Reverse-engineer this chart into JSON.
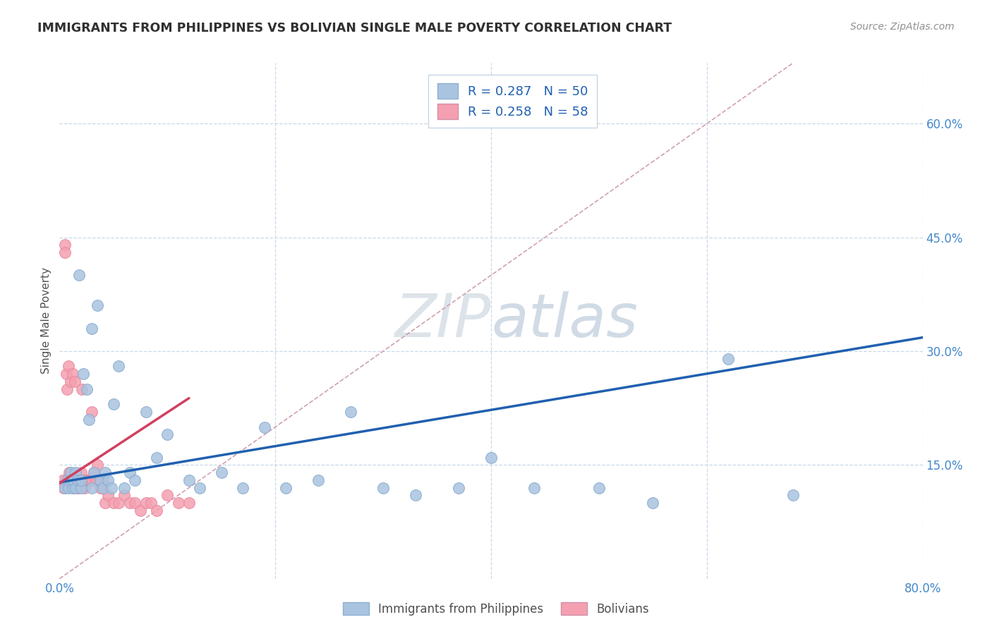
{
  "title": "IMMIGRANTS FROM PHILIPPINES VS BOLIVIAN SINGLE MALE POVERTY CORRELATION CHART",
  "source": "Source: ZipAtlas.com",
  "ylabel": "Single Male Poverty",
  "background_color": "#ffffff",
  "watermark_zip": "ZIP",
  "watermark_atlas": "atlas",
  "blue_R": 0.287,
  "blue_N": 50,
  "pink_R": 0.258,
  "pink_N": 58,
  "blue_scatter_color": "#a8c4e0",
  "pink_scatter_color": "#f4a0b0",
  "blue_line_color": "#2060b0",
  "pink_line_color": "#d04060",
  "diag_line_color": "#d0a0b0",
  "grid_color": "#c8d8e8",
  "title_color": "#303030",
  "axis_label_color": "#4488cc",
  "legend_text_color": "#2060b0",
  "xlim": [
    0.0,
    0.8
  ],
  "ylim": [
    0.0,
    0.68
  ],
  "x_ticks": [
    0.0,
    0.2,
    0.4,
    0.6,
    0.8
  ],
  "x_tick_labels": [
    "0.0%",
    "",
    "",
    "",
    "80.0%"
  ],
  "y_ticks_right": [
    0.15,
    0.3,
    0.45,
    0.6
  ],
  "y_tick_labels_right": [
    "15.0%",
    "30.0%",
    "45.0%",
    "60.0%"
  ],
  "blue_scatter_x": [
    0.005,
    0.007,
    0.008,
    0.01,
    0.01,
    0.012,
    0.013,
    0.015,
    0.015,
    0.017,
    0.018,
    0.02,
    0.02,
    0.022,
    0.025,
    0.027,
    0.03,
    0.03,
    0.032,
    0.035,
    0.038,
    0.04,
    0.042,
    0.045,
    0.048,
    0.05,
    0.055,
    0.06,
    0.065,
    0.07,
    0.08,
    0.09,
    0.1,
    0.12,
    0.13,
    0.15,
    0.17,
    0.19,
    0.21,
    0.24,
    0.27,
    0.3,
    0.33,
    0.37,
    0.4,
    0.44,
    0.5,
    0.55,
    0.62,
    0.68
  ],
  "blue_scatter_y": [
    0.12,
    0.13,
    0.12,
    0.14,
    0.13,
    0.12,
    0.13,
    0.12,
    0.14,
    0.13,
    0.4,
    0.12,
    0.13,
    0.27,
    0.25,
    0.21,
    0.12,
    0.33,
    0.14,
    0.36,
    0.13,
    0.12,
    0.14,
    0.13,
    0.12,
    0.23,
    0.28,
    0.12,
    0.14,
    0.13,
    0.22,
    0.16,
    0.19,
    0.13,
    0.12,
    0.14,
    0.12,
    0.2,
    0.12,
    0.13,
    0.22,
    0.12,
    0.11,
    0.12,
    0.16,
    0.12,
    0.12,
    0.1,
    0.29,
    0.11
  ],
  "pink_scatter_x": [
    0.003,
    0.004,
    0.005,
    0.005,
    0.006,
    0.007,
    0.008,
    0.008,
    0.009,
    0.01,
    0.01,
    0.01,
    0.011,
    0.012,
    0.012,
    0.013,
    0.013,
    0.014,
    0.014,
    0.015,
    0.015,
    0.016,
    0.016,
    0.017,
    0.018,
    0.018,
    0.019,
    0.02,
    0.02,
    0.021,
    0.022,
    0.023,
    0.024,
    0.025,
    0.026,
    0.027,
    0.028,
    0.03,
    0.03,
    0.032,
    0.034,
    0.035,
    0.038,
    0.04,
    0.042,
    0.045,
    0.05,
    0.055,
    0.06,
    0.065,
    0.07,
    0.075,
    0.08,
    0.085,
    0.09,
    0.1,
    0.11,
    0.12
  ],
  "pink_scatter_y": [
    0.13,
    0.12,
    0.44,
    0.43,
    0.27,
    0.25,
    0.28,
    0.13,
    0.14,
    0.13,
    0.13,
    0.26,
    0.13,
    0.27,
    0.13,
    0.12,
    0.13,
    0.13,
    0.26,
    0.13,
    0.13,
    0.12,
    0.13,
    0.12,
    0.13,
    0.13,
    0.13,
    0.13,
    0.14,
    0.25,
    0.13,
    0.12,
    0.13,
    0.13,
    0.13,
    0.13,
    0.13,
    0.22,
    0.13,
    0.14,
    0.13,
    0.15,
    0.12,
    0.13,
    0.1,
    0.11,
    0.1,
    0.1,
    0.11,
    0.1,
    0.1,
    0.09,
    0.1,
    0.1,
    0.09,
    0.11,
    0.1,
    0.1
  ],
  "blue_trend_x": [
    0.0,
    0.8
  ],
  "blue_trend_y": [
    0.127,
    0.318
  ],
  "pink_trend_x": [
    0.0,
    0.12
  ],
  "pink_trend_y": [
    0.126,
    0.238
  ],
  "diag_line_x": [
    0.0,
    0.68
  ],
  "diag_line_y": [
    0.0,
    0.68
  ],
  "legend_label_blue": "Immigrants from Philippines",
  "legend_label_pink": "Bolivians"
}
